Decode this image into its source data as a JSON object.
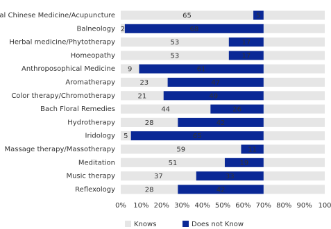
{
  "chart_data": {
    "type": "stacked-bar-horizontal",
    "categories": [
      "onal Chinese Medicine/Acupuncture",
      "Balneology",
      "Herbal medicine/Phytotherapy",
      "Homeopathy",
      "Anthroposophical Medicine",
      "Aromatherapy",
      "Color therapy/Chromotherapy",
      "Bach Floral Remedies",
      "Hydrotherapy",
      "Iridology",
      "Massage therapy/Massotherapy",
      "Meditation",
      "Music therapy",
      "Reflexology"
    ],
    "series": [
      {
        "name": "Knows",
        "color": "#e6e6e6",
        "values": [
          65,
          2,
          53,
          53,
          9,
          23,
          21,
          44,
          28,
          5,
          59,
          51,
          37,
          28
        ]
      },
      {
        "name": "Does not Know",
        "color": "#0a2896",
        "values": [
          5,
          68,
          17,
          17,
          61,
          47,
          49,
          26,
          42,
          65,
          11,
          19,
          33,
          42
        ]
      }
    ],
    "xlim": [
      0,
      100
    ],
    "xticks": [
      {
        "value": 0,
        "label": "0%"
      },
      {
        "value": 10,
        "label": "10%"
      },
      {
        "value": 20,
        "label": "20%"
      },
      {
        "value": 30,
        "label": "30%"
      },
      {
        "value": 40,
        "label": "40%"
      },
      {
        "value": 50,
        "label": "50%"
      },
      {
        "value": 60,
        "label": "60%"
      },
      {
        "value": 70,
        "label": "70%"
      },
      {
        "value": 80,
        "label": "80%"
      },
      {
        "value": 90,
        "label": "90%"
      },
      {
        "value": 100,
        "label": "100"
      }
    ]
  }
}
